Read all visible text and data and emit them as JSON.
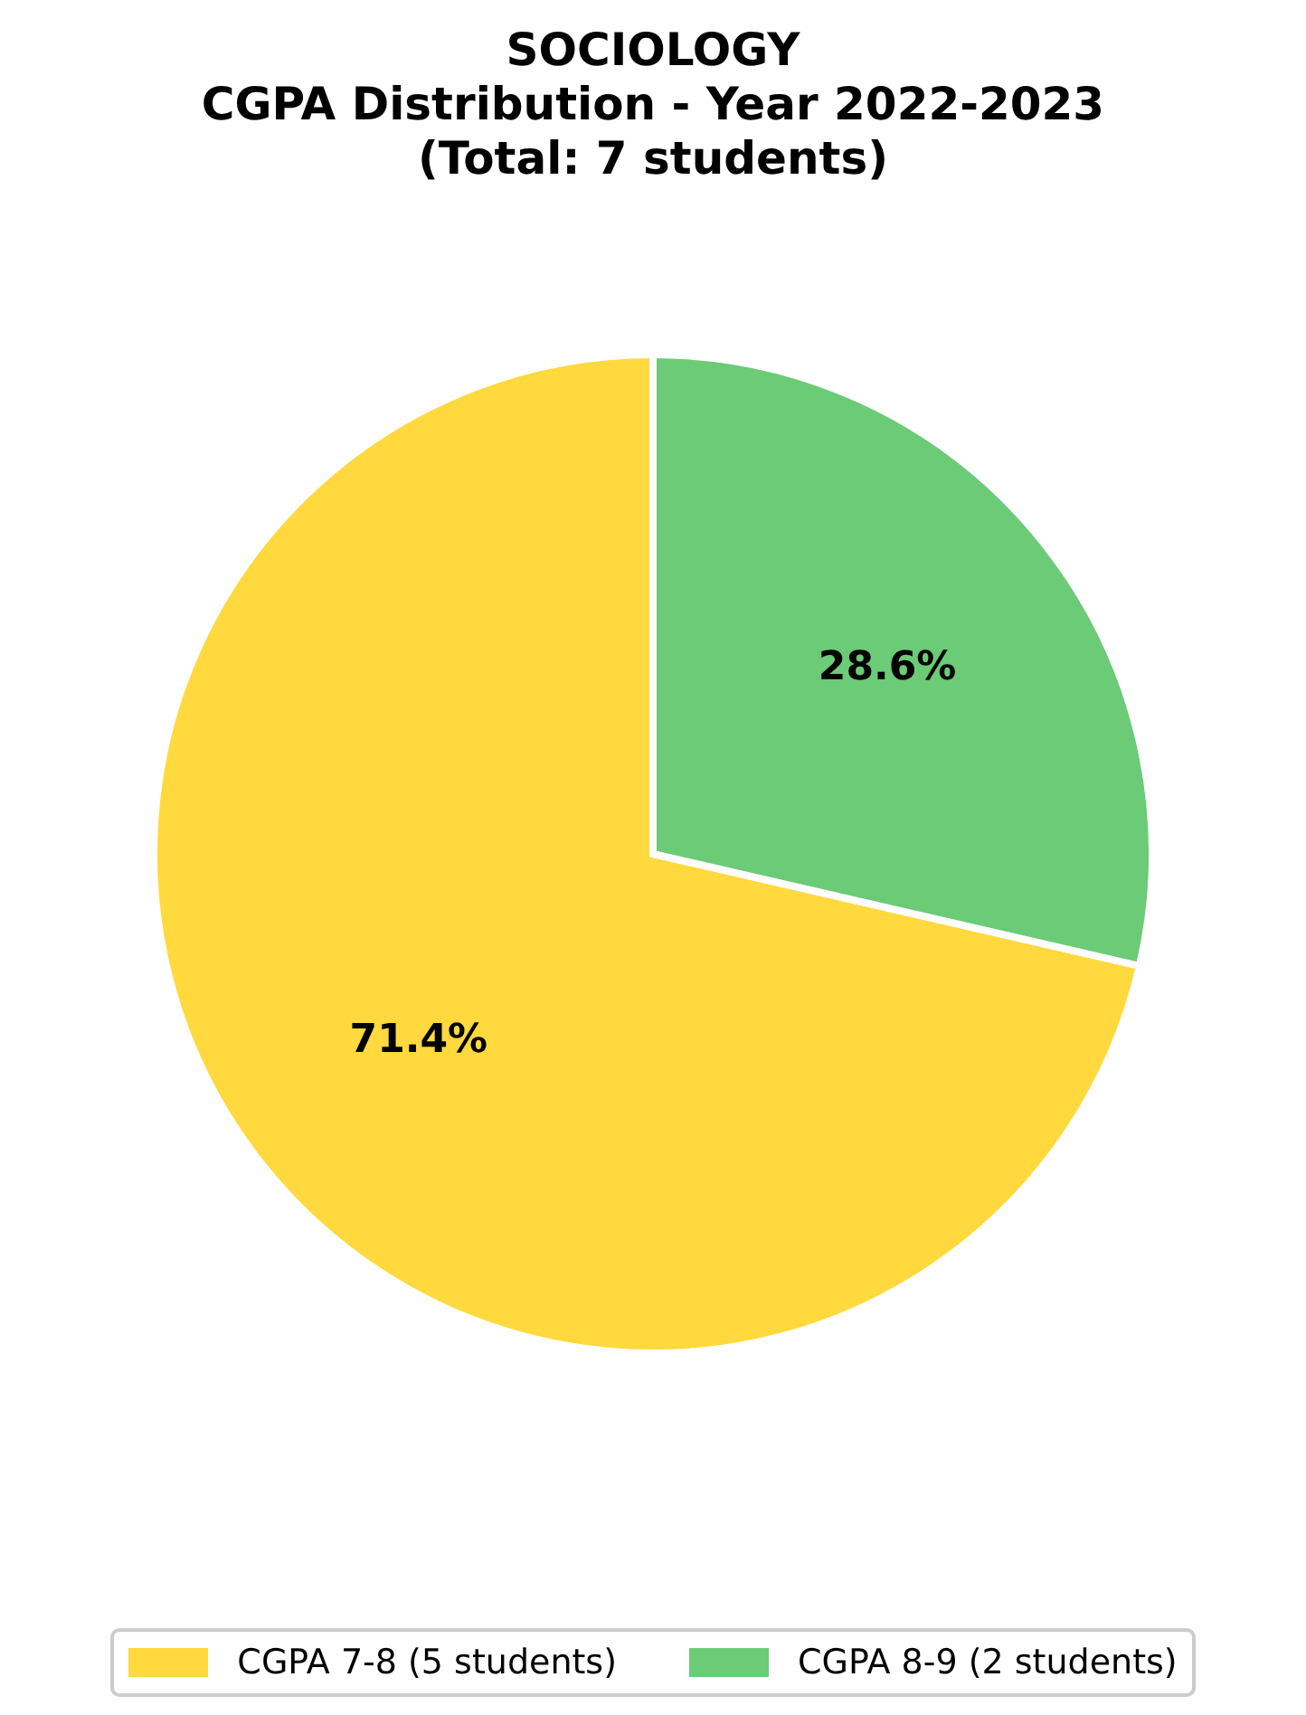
{
  "chart_data": {
    "type": "pie",
    "title": "SOCIOLOGY\nCGPA Distribution - Year 2022-2023\n(Total: 7 students)",
    "categories": [
      "CGPA 7-8 (5 students)",
      "CGPA 8-9 (2 students)"
    ],
    "values": [
      71.4,
      28.6
    ],
    "colors": [
      "#ffd93d",
      "#6bcb77"
    ],
    "value_labels": [
      "71.4%",
      "28.6%"
    ],
    "legend": "bottom"
  }
}
